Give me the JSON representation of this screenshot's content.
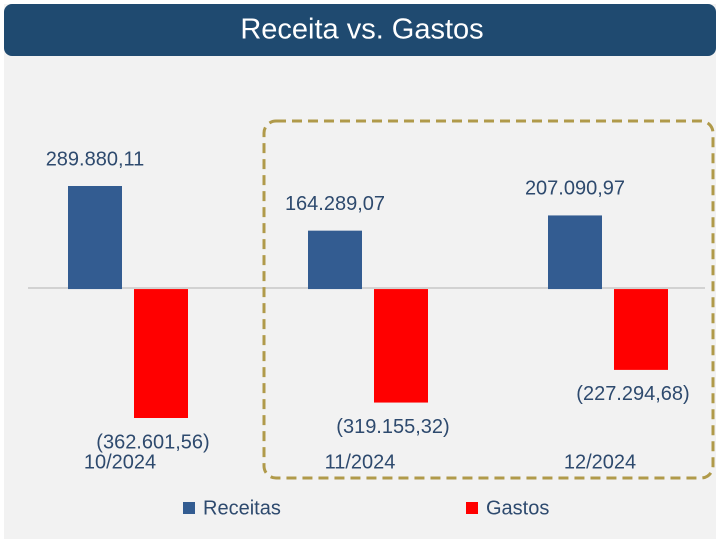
{
  "chart_data": {
    "type": "bar",
    "title": "Receita vs. Gastos",
    "categories": [
      "10/2024",
      "11/2024",
      "12/2024"
    ],
    "series": [
      {
        "name": "Receitas",
        "color": "#335c91",
        "values": [
          289880.11,
          164289.07,
          207090.97
        ],
        "value_labels": [
          "289.880,11",
          "164.289,07",
          "207.090,97"
        ]
      },
      {
        "name": "Gastos",
        "color": "#ff0000",
        "values": [
          -362601.56,
          -319155.32,
          -227294.68
        ],
        "value_labels": [
          "(362.601,56)",
          "(319.155,32)",
          "(227.294,68)"
        ]
      }
    ]
  }
}
